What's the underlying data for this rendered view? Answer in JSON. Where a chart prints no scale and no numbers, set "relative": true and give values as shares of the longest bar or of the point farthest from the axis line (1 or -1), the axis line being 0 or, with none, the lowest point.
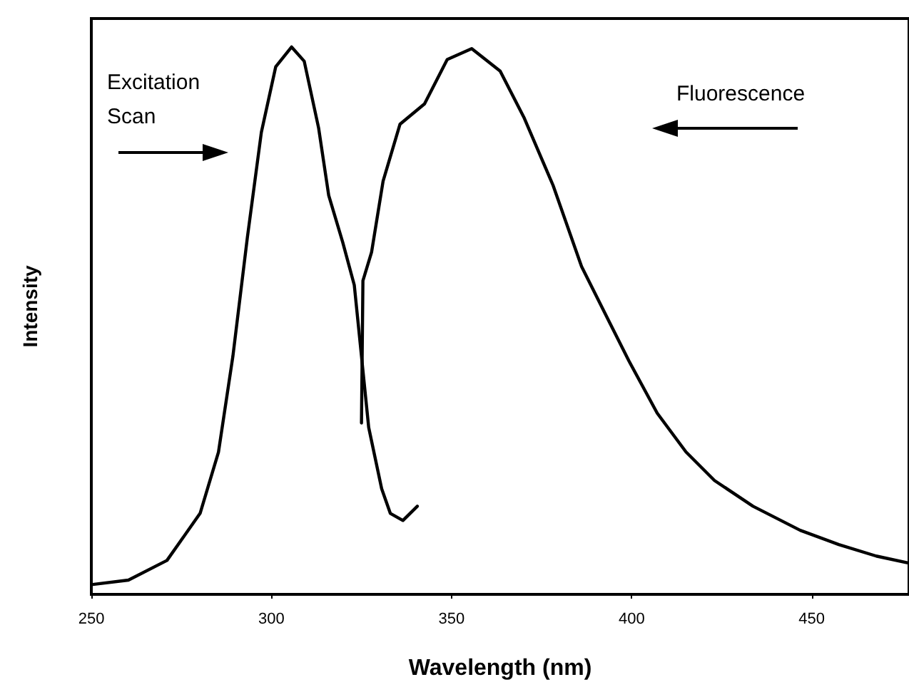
{
  "chart_data": {
    "type": "line",
    "xlabel": "Wavelength (nm)",
    "ylabel": "Intensity",
    "relative": true,
    "annotations": [
      "Excitation Scan",
      "Fluorescence"
    ],
    "xlim": [
      250,
      477
    ],
    "xticks": [
      250,
      300,
      350,
      400,
      450
    ],
    "grid": false,
    "marker": "none",
    "line_style": "solid",
    "series": [
      {
        "color": "#000000",
        "x": [
          250.4,
          260.3,
          271,
          280.2,
          285.3,
          289.3,
          293.3,
          297.2,
          301.2,
          305.6,
          309.1,
          313.1,
          315.9,
          319.8,
          323,
          325,
          327,
          330.6,
          333,
          336.5,
          340.5
        ],
        "values": [
          0.018,
          0.026,
          0.062,
          0.148,
          0.26,
          0.435,
          0.651,
          0.844,
          0.964,
          1.0,
          0.974,
          0.852,
          0.729,
          0.643,
          0.565,
          0.435,
          0.305,
          0.193,
          0.148,
          0.135,
          0.161
        ]
      },
      {
        "color": "#000000",
        "x": [
          325,
          325.4,
          327.8,
          331,
          335.7,
          342.5,
          348.8,
          355.6,
          363.5,
          370.2,
          378.2,
          386.1,
          394,
          399.2,
          407.1,
          415.1,
          423,
          433.7,
          446.8,
          457.5,
          467.9,
          477
        ],
        "values": [
          0.313,
          0.573,
          0.625,
          0.755,
          0.859,
          0.896,
          0.977,
          0.997,
          0.956,
          0.87,
          0.747,
          0.599,
          0.495,
          0.427,
          0.331,
          0.26,
          0.208,
          0.161,
          0.117,
          0.091,
          0.07,
          0.057
        ]
      }
    ]
  }
}
